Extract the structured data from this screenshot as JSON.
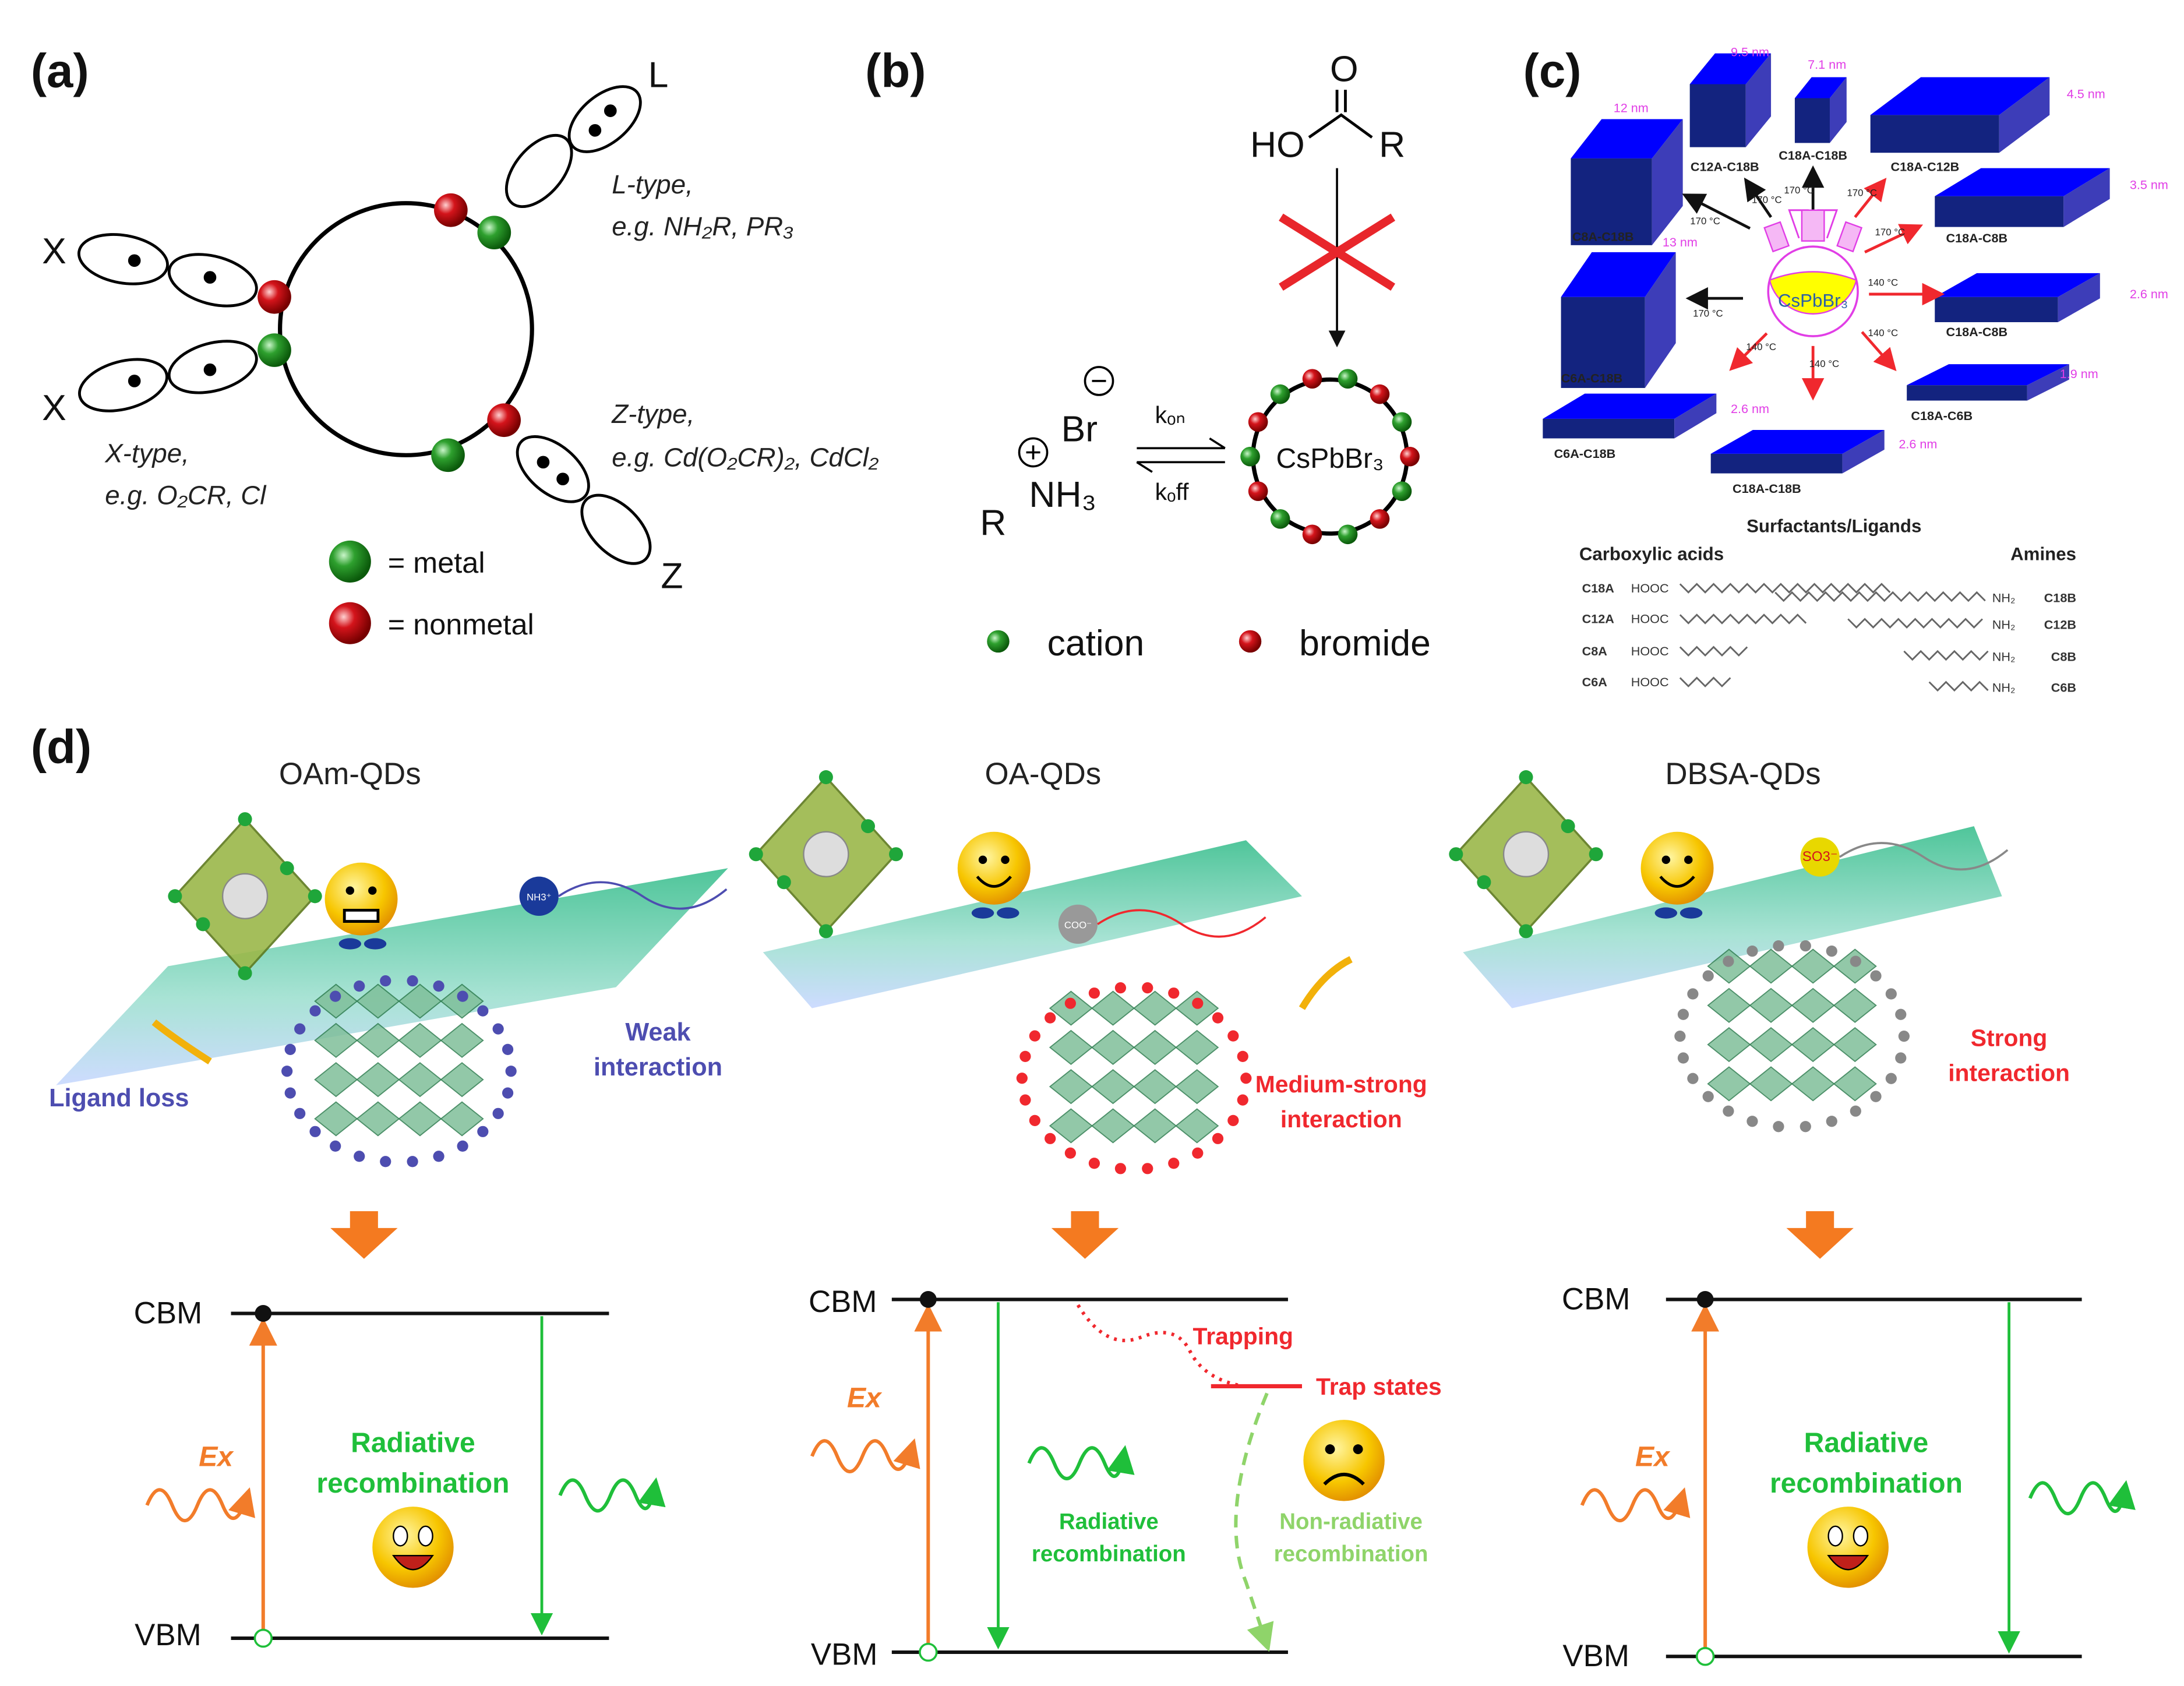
{
  "panel_a": {
    "label": "(a)",
    "x_label_1": "X",
    "x_label_2": "X",
    "l_label": "L",
    "z_label": "Z",
    "l_type": "L-type,",
    "l_example": "e.g. NH₂R, PR₃",
    "x_type": "X-type,",
    "x_example": "e.g. O₂CR, Cl",
    "z_type": "Z-type,",
    "z_example": "e.g. Cd(O₂CR)₂, CdCl₂",
    "legend_metal": "= metal",
    "legend_nonmetal": "= nonmetal",
    "colors": {
      "metal": "#2ea02e",
      "nonmetal": "#d4141b"
    }
  },
  "panel_b": {
    "label": "(b)",
    "acid_O": "O",
    "acid_HO": "HO",
    "acid_R": "R",
    "anion": "Br",
    "cation_group": "NH₃",
    "cation_R": "R",
    "k_on": "kₒₙ",
    "k_off": "kₒff",
    "core": "CsPbBr₃",
    "legend_cation": "cation",
    "legend_bromide": "bromide"
  },
  "panel_c": {
    "label": "(c)",
    "flask_label": "CsPbBr₃",
    "products": [
      {
        "name": "C8A-C18B",
        "size": "12 nm",
        "temp": "170 °C"
      },
      {
        "name": "C12A-C18B",
        "size": "9.5 nm",
        "temp": "170 °C"
      },
      {
        "name": "C18A-C18B",
        "size": "7.1 nm",
        "temp": "170 °C"
      },
      {
        "name": "C18A-C12B",
        "size": "4.5 nm",
        "temp": "170 °C"
      },
      {
        "name": "C18A-C8B",
        "size": "3.5 nm",
        "temp": "170 °C"
      },
      {
        "name": "C18A-C8B",
        "size": "2.6 nm",
        "temp": "140 °C"
      },
      {
        "name": "C18A-C6B",
        "size": "1.9 nm",
        "temp": "140 °C"
      },
      {
        "name": "C18A-C18B",
        "size": "2.6 nm",
        "temp": "140 °C"
      },
      {
        "name": "C6A-C18B",
        "size": "2.6 nm",
        "temp": "140 °C"
      },
      {
        "name": "C6A-C18B",
        "size": "13 nm",
        "temp": "170 °C"
      }
    ],
    "ligands_title": "Surfactants/Ligands",
    "acids_header": "Carboxylic acids",
    "amines_header": "Amines",
    "acids": [
      {
        "name": "C18A",
        "group": "HOOC"
      },
      {
        "name": "C12A",
        "group": "HOOC"
      },
      {
        "name": "C8A",
        "group": "HOOC"
      },
      {
        "name": "C6A",
        "group": "HOOC"
      }
    ],
    "amines": [
      {
        "name": "C18B",
        "group": "NH₂"
      },
      {
        "name": "C12B",
        "group": "NH₂"
      },
      {
        "name": "C8B",
        "group": "NH₂"
      },
      {
        "name": "C6B",
        "group": "NH₂"
      }
    ]
  },
  "panel_d": {
    "label": "(d)",
    "columns": [
      {
        "title": "OAm-QDs",
        "ligand_tag": "NH3⁺",
        "note_1": "Ligand loss",
        "note_2a": "Weak",
        "note_2b": "interaction",
        "cbm": "CBM",
        "vbm": "VBM",
        "ex": "Ex",
        "rad_1": "Radiative",
        "rad_2": "recombination"
      },
      {
        "title": "OA-QDs",
        "ligand_tag": "COO⁻",
        "note_1a": "Medium-strong",
        "note_1b": "interaction",
        "cbm": "CBM",
        "vbm": "VBM",
        "ex": "Ex",
        "rad_1": "Radiative",
        "rad_2": "recombination",
        "trapping": "Trapping",
        "trap_states": "Trap states",
        "nonrad_1": "Non-radiative",
        "nonrad_2": "recombination"
      },
      {
        "title": "DBSA-QDs",
        "ligand_tag": "SO3⁻",
        "note_1a": "Strong",
        "note_1b": "interaction",
        "cbm": "CBM",
        "vbm": "VBM",
        "ex": "Ex",
        "rad_1": "Radiative",
        "rad_2": "recombination"
      }
    ],
    "colors": {
      "excitation": "#f27c2a",
      "radiative": "#1fbf3a",
      "trap": "#f0282e",
      "nonradiative": "#8fd46a",
      "weak": "#4d4db0"
    }
  }
}
